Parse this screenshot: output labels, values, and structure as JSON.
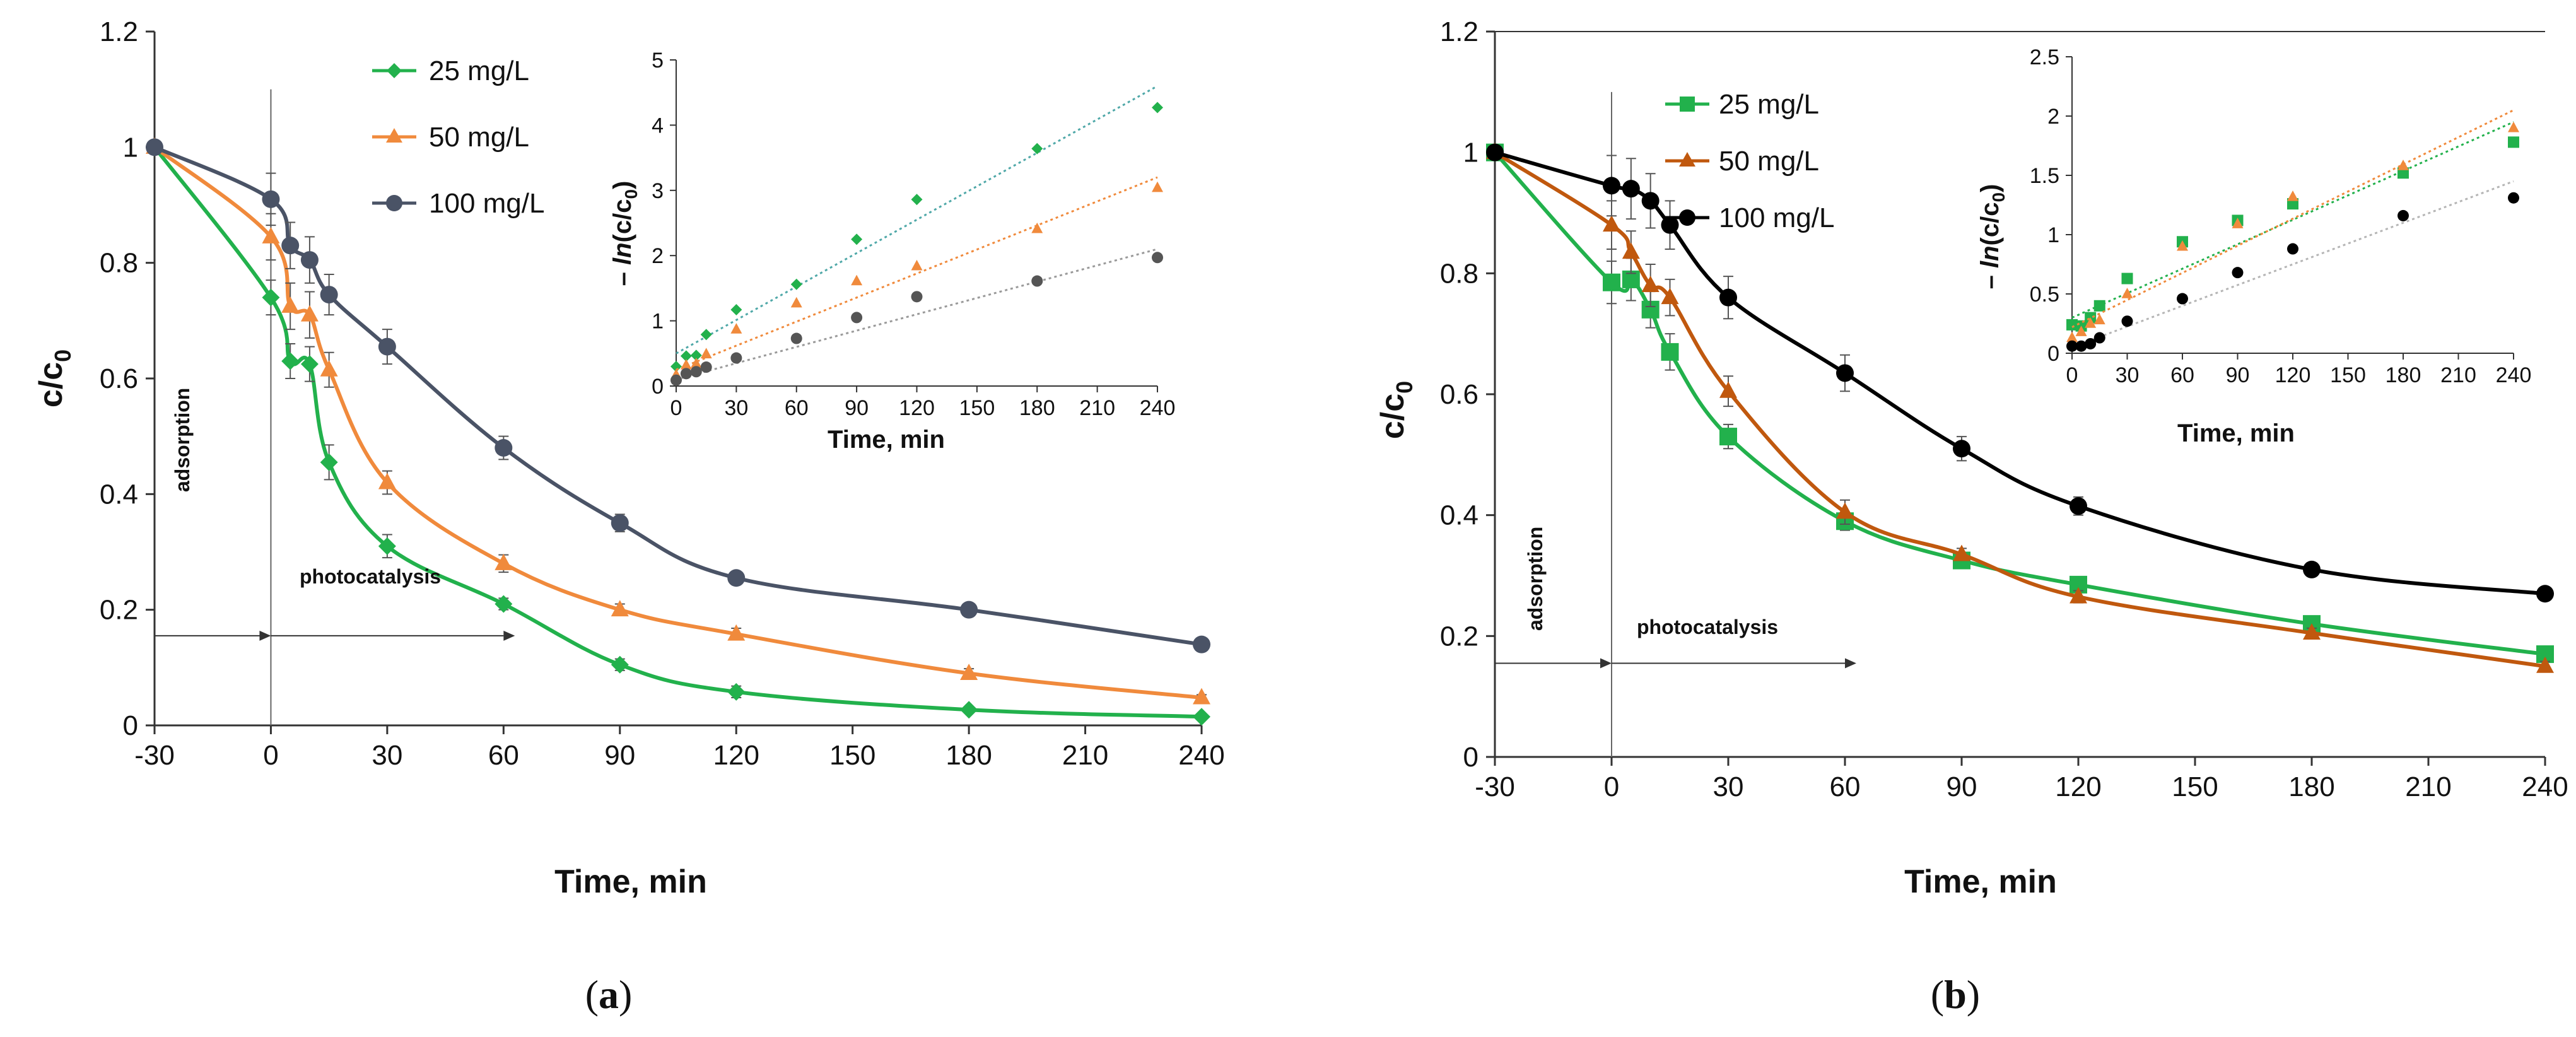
{
  "chart_data": [
    {
      "type": "line",
      "panel_label_open": "(",
      "panel_label_letter": "a",
      "panel_label_close": ")",
      "xlabel": "Time, min",
      "ylabel_main": "c/c",
      "ylabel_sub": "0",
      "xlim": [
        -30,
        240
      ],
      "ylim": [
        0,
        1.2
      ],
      "x_ticks": [
        "-30",
        "0",
        "30",
        "60",
        "90",
        "120",
        "150",
        "180",
        "210",
        "240"
      ],
      "y_ticks": [
        "0",
        "0.2",
        "0.4",
        "0.6",
        "0.8",
        "1",
        "1.2"
      ],
      "annotations": {
        "adsorption": "adsorption",
        "photocatalysis": "photocatalysis"
      },
      "x": [
        -30,
        0,
        5,
        10,
        15,
        30,
        60,
        90,
        120,
        180,
        240
      ],
      "series": [
        {
          "name": "25 mg/L",
          "color": "#22b14c",
          "marker": "diamond",
          "values": [
            1.0,
            0.74,
            0.63,
            0.625,
            0.455,
            0.31,
            0.21,
            0.105,
            0.058,
            0.027,
            0.015
          ],
          "errors": [
            0,
            0.03,
            0.03,
            0.03,
            0.03,
            0.02,
            0.01,
            0.01,
            0.01,
            0.005,
            0.005
          ]
        },
        {
          "name": "50 mg/L",
          "color": "#f08a3c",
          "marker": "triangle",
          "values": [
            1.0,
            0.845,
            0.725,
            0.71,
            0.615,
            0.42,
            0.28,
            0.2,
            0.158,
            0.09,
            0.048
          ],
          "errors": [
            0,
            0.04,
            0.04,
            0.04,
            0.03,
            0.02,
            0.015,
            0.01,
            0.01,
            0.008,
            0.005
          ]
        },
        {
          "name": "100 mg/L",
          "color": "#4a5366",
          "marker": "circle",
          "values": [
            1.0,
            0.91,
            0.83,
            0.805,
            0.745,
            0.655,
            0.48,
            0.35,
            0.255,
            0.2,
            0.14
          ],
          "errors": [
            0,
            0.045,
            0.04,
            0.04,
            0.035,
            0.03,
            0.02,
            0.015,
            0.01,
            0.008,
            0.008
          ]
        }
      ],
      "inset": {
        "ylabel_prefix": "– ",
        "ylabel_ln": "ln",
        "ylabel_main": "(c/c",
        "ylabel_sub": "0",
        "ylabel_close": ")",
        "xlabel": "Time, min",
        "xlim": [
          0,
          240
        ],
        "ylim": [
          0,
          5
        ],
        "x_ticks": [
          "0",
          "30",
          "60",
          "90",
          "120",
          "150",
          "180",
          "210",
          "240"
        ],
        "y_ticks": [
          "0",
          "1",
          "2",
          "3",
          "4",
          "5"
        ],
        "x": [
          0,
          5,
          10,
          15,
          30,
          60,
          90,
          120,
          180,
          240
        ],
        "series": [
          {
            "name": "25 mg/L",
            "color": "#22b14c",
            "line_color": "#4fa8a8",
            "marker": "diamond",
            "values": [
              0.3,
              0.46,
              0.47,
              0.79,
              1.17,
              1.56,
              2.25,
              2.86,
              3.64,
              4.27
            ],
            "fit": [
              0.5,
              4.6
            ]
          },
          {
            "name": "50 mg/L",
            "color": "#f08a3c",
            "line_color": "#f08a3c",
            "marker": "triangle",
            "values": [
              0.17,
              0.32,
              0.34,
              0.49,
              0.87,
              1.27,
              1.61,
              1.84,
              2.41,
              3.04
            ],
            "fit": [
              0.25,
              3.2
            ]
          },
          {
            "name": "100 mg/L",
            "color": "#555555",
            "line_color": "#9a9a9a",
            "marker": "circle",
            "values": [
              0.09,
              0.19,
              0.22,
              0.29,
              0.43,
              0.73,
              1.05,
              1.37,
              1.61,
              1.97
            ],
            "fit": [
              0.1,
              2.1
            ]
          }
        ]
      }
    },
    {
      "type": "line",
      "panel_label_open": "(",
      "panel_label_letter": "b",
      "panel_label_close": ")",
      "xlabel": "Time, min",
      "ylabel_main": "c/c",
      "ylabel_sub": "0",
      "xlim": [
        -30,
        240
      ],
      "ylim": [
        0,
        1.2
      ],
      "x_ticks": [
        "-30",
        "0",
        "30",
        "60",
        "90",
        "120",
        "150",
        "180",
        "210",
        "240"
      ],
      "y_ticks": [
        "0",
        "0.2",
        "0.4",
        "0.6",
        "0.8",
        "1",
        "1.2"
      ],
      "annotations": {
        "adsorption": "adsorption",
        "photocatalysis": "photocatalysis"
      },
      "x": [
        -30,
        0,
        5,
        10,
        15,
        30,
        60,
        90,
        120,
        180,
        240
      ],
      "series": [
        {
          "name": "25 mg/L",
          "color": "#22b14c",
          "marker": "square",
          "values": [
            1.0,
            0.785,
            0.79,
            0.74,
            0.67,
            0.53,
            0.39,
            0.325,
            0.285,
            0.22,
            0.17
          ],
          "errors": [
            0,
            0.035,
            0.035,
            0.03,
            0.03,
            0.02,
            0.015,
            0.01,
            0.01,
            0.008,
            0.008
          ]
        },
        {
          "name": "50 mg/L",
          "color": "#c0580e",
          "marker": "triangle",
          "values": [
            1.0,
            0.88,
            0.835,
            0.78,
            0.76,
            0.605,
            0.405,
            0.335,
            0.265,
            0.205,
            0.15
          ],
          "errors": [
            0,
            0.04,
            0.035,
            0.035,
            0.03,
            0.025,
            0.02,
            0.01,
            0.01,
            0.008,
            0.008
          ]
        },
        {
          "name": "100 mg/L",
          "color": "#000000",
          "marker": "circle",
          "values": [
            1.0,
            0.945,
            0.94,
            0.92,
            0.88,
            0.76,
            0.635,
            0.51,
            0.415,
            0.31,
            0.27
          ],
          "errors": [
            0,
            0.05,
            0.05,
            0.045,
            0.04,
            0.035,
            0.03,
            0.02,
            0.015,
            0.01,
            0.008
          ]
        }
      ],
      "inset": {
        "ylabel_prefix": "– ",
        "ylabel_ln": "ln",
        "ylabel_main": "(c/c",
        "ylabel_sub": "0",
        "ylabel_close": ")",
        "xlabel": "Time, min",
        "xlim": [
          0,
          240
        ],
        "ylim": [
          0,
          2.5
        ],
        "x_ticks": [
          "0",
          "30",
          "60",
          "90",
          "120",
          "150",
          "180",
          "210",
          "240"
        ],
        "y_ticks": [
          "0",
          "0.5",
          "1",
          "1.5",
          "2",
          "2.5"
        ],
        "x": [
          0,
          5,
          10,
          15,
          30,
          60,
          90,
          120,
          180,
          240
        ],
        "series": [
          {
            "name": "25 mg/L",
            "color": "#22b14c",
            "line_color": "#22b14c",
            "marker": "square",
            "values": [
              0.24,
              0.23,
              0.3,
              0.4,
              0.63,
              0.94,
              1.12,
              1.26,
              1.52,
              1.78
            ],
            "fit": [
              0.3,
              1.95
            ]
          },
          {
            "name": "50 mg/L",
            "color": "#f08a3c",
            "line_color": "#f08a3c",
            "marker": "triangle",
            "values": [
              0.13,
              0.18,
              0.25,
              0.28,
              0.5,
              0.9,
              1.09,
              1.32,
              1.58,
              1.9
            ],
            "fit": [
              0.22,
              2.05
            ]
          },
          {
            "name": "100 mg/L",
            "color": "#000000",
            "line_color": "#b5b5b5",
            "marker": "circle",
            "values": [
              0.06,
              0.06,
              0.08,
              0.13,
              0.27,
              0.46,
              0.68,
              0.88,
              1.16,
              1.31
            ],
            "fit": [
              0.05,
              1.45
            ]
          }
        ]
      }
    }
  ]
}
